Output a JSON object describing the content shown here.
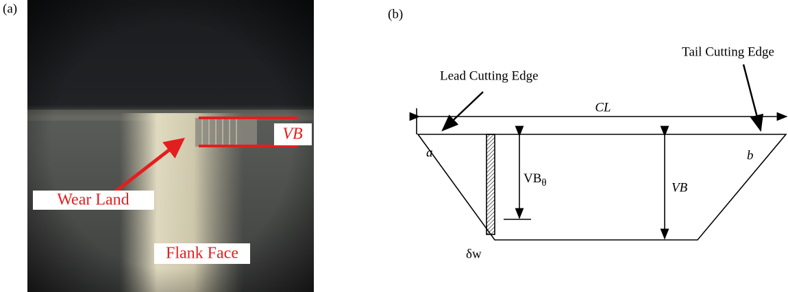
{
  "panel_a": {
    "label": "(a)",
    "annotations": {
      "vb": "VB",
      "wear_land": "Wear Land",
      "flank_face": "Flank Face"
    }
  },
  "panel_b": {
    "label": "(b)",
    "lead_edge": "Lead Cutting Edge",
    "tail_edge": "Tail Cutting Edge",
    "cl": "CL",
    "corner_a": "a",
    "corner_b": "b",
    "vb_theta": {
      "main": "VB",
      "sub": "θ"
    },
    "vb": "VB",
    "delta_w": "δw"
  }
}
